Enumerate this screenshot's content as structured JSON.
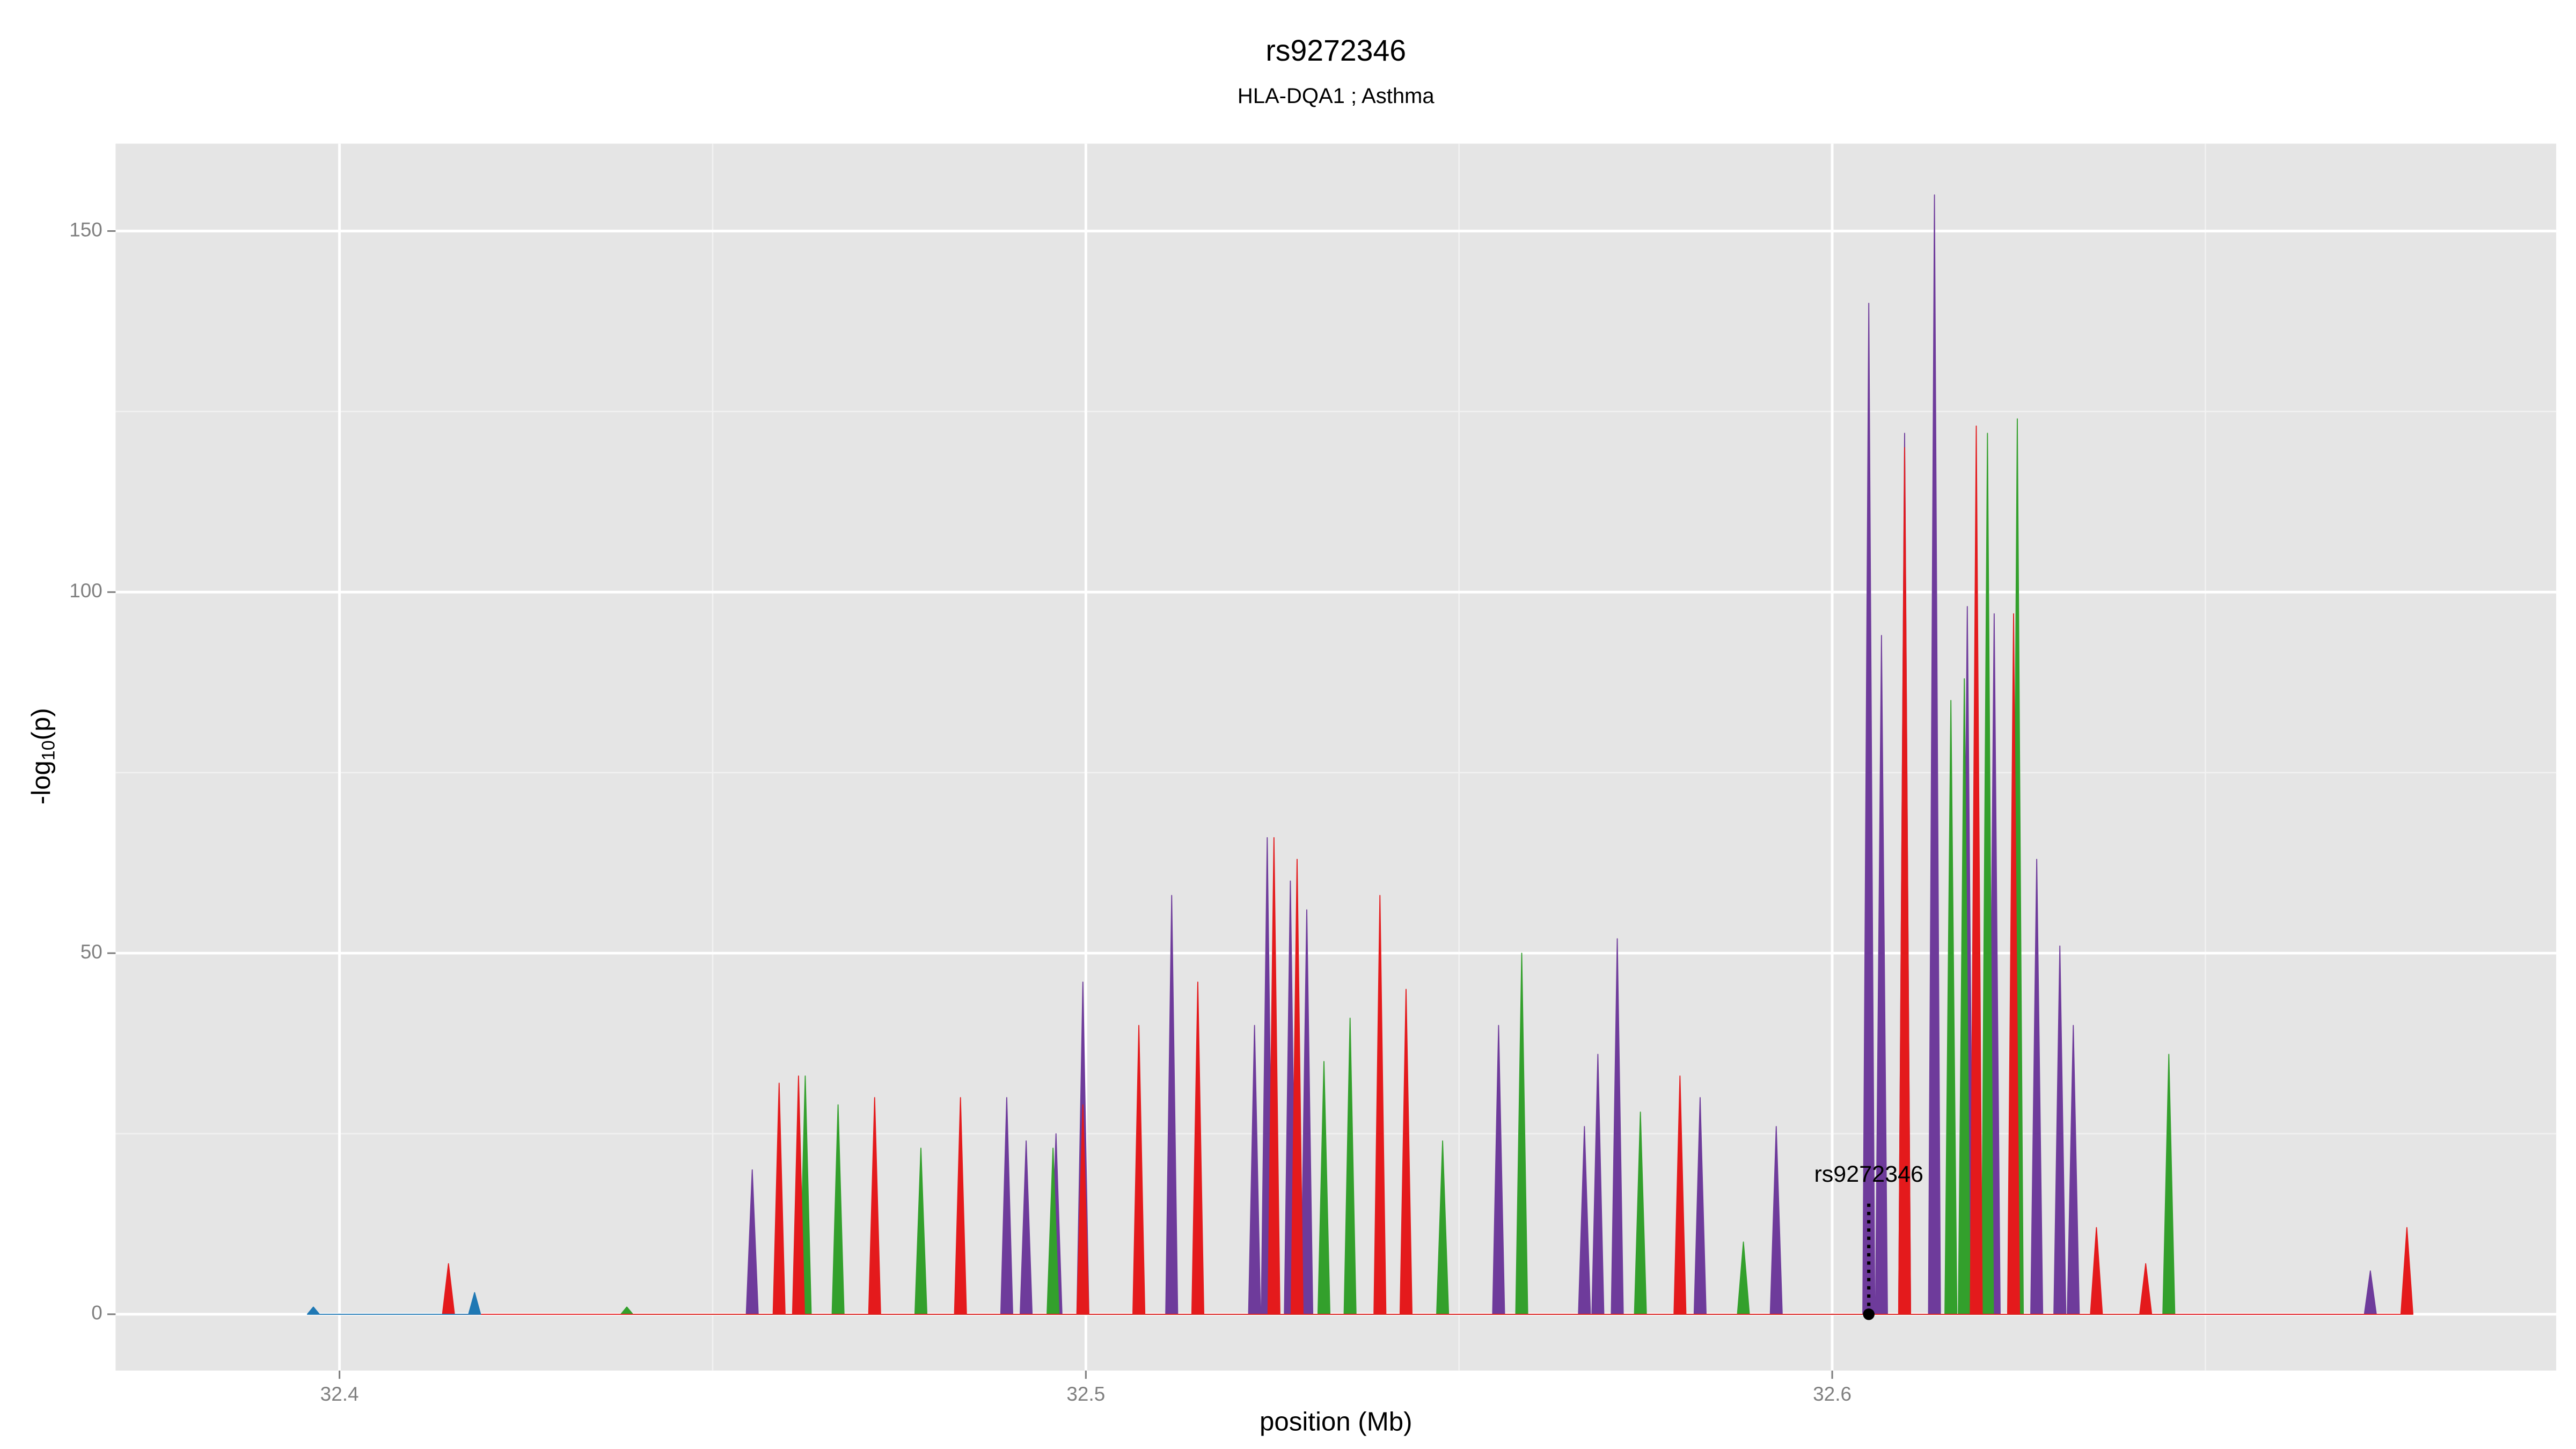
{
  "chart_data": {
    "type": "area",
    "title": "rs9272346",
    "subtitle": "HLA-DQA1 ; Asthma",
    "xlabel": "position (Mb)",
    "ylabel": {
      "prefix": "-log",
      "sub": "10",
      "suffix": "(p)"
    },
    "xlim": [
      32.37,
      32.697
    ],
    "ylim": [
      -7.8,
      162.1
    ],
    "xticks": [
      32.4,
      32.5,
      32.6
    ],
    "yticks": [
      0,
      50,
      100,
      150
    ],
    "grid": true,
    "series": [
      {
        "color": "#6e3b9b",
        "x": [
          32.4545,
          32.4553,
          32.4561,
          32.4886,
          32.4894,
          32.4902,
          32.4912,
          32.492,
          32.4928,
          32.4952,
          32.496,
          32.4968,
          32.4988,
          32.4996,
          32.5004,
          32.5107,
          32.5115,
          32.5123,
          32.5218,
          32.5226,
          32.5234,
          32.5235,
          32.5243,
          32.5251,
          32.5266,
          32.5274,
          32.5282,
          32.5288,
          32.5296,
          32.5304,
          32.5545,
          32.5553,
          32.5561,
          32.566,
          32.5668,
          32.5676,
          32.5678,
          32.5686,
          32.5694,
          32.5704,
          32.5712,
          32.572,
          32.5815,
          32.5823,
          32.5831,
          32.5917,
          32.5925,
          32.5933,
          32.6041,
          32.6049,
          32.6057,
          32.6058,
          32.6066,
          32.6074,
          32.6089,
          32.6097,
          32.6105,
          32.6129,
          32.6137,
          32.6145,
          32.6173,
          32.6181,
          32.6189,
          32.6209,
          32.6217,
          32.6225,
          32.6266,
          32.6274,
          32.6282,
          32.6297,
          32.6305,
          32.6313,
          32.6315,
          32.6323,
          32.6331,
          32.6713,
          32.6721,
          32.6729
        ],
        "values": [
          0,
          20,
          0,
          0,
          30,
          0,
          0,
          24,
          0,
          0,
          25,
          0,
          0,
          46,
          0,
          0,
          58,
          0,
          0,
          40,
          0,
          0,
          66,
          0,
          0,
          60,
          0,
          0,
          56,
          0,
          0,
          40,
          0,
          0,
          26,
          0,
          0,
          36,
          0,
          0,
          52,
          0,
          0,
          30,
          0,
          0,
          26,
          0,
          0,
          140,
          0,
          0,
          94,
          0,
          0,
          122,
          0,
          0,
          155,
          0,
          0,
          98,
          0,
          0,
          97,
          0,
          0,
          63,
          0,
          0,
          51,
          0,
          0,
          40,
          0,
          0,
          6,
          0
        ]
      },
      {
        "color": "#33a02c",
        "x": [
          32.4377,
          32.4385,
          32.4393,
          32.4616,
          32.4624,
          32.4632,
          32.466,
          32.4668,
          32.4676,
          32.4771,
          32.4779,
          32.4787,
          32.4948,
          32.4956,
          32.4964,
          32.5311,
          32.5319,
          32.5327,
          32.5346,
          32.5354,
          32.5362,
          32.547,
          32.5478,
          32.5486,
          32.5576,
          32.5584,
          32.5592,
          32.5735,
          32.5743,
          32.5751,
          32.5873,
          32.5881,
          32.5889,
          32.6151,
          32.6159,
          32.6167,
          32.6169,
          32.6177,
          32.6185,
          32.62,
          32.6208,
          32.6216,
          32.624,
          32.6248,
          32.6256,
          32.6443,
          32.6451,
          32.6459
        ],
        "values": [
          0,
          1,
          0,
          0,
          33,
          0,
          0,
          29,
          0,
          0,
          23,
          0,
          0,
          23,
          0,
          0,
          35,
          0,
          0,
          41,
          0,
          0,
          24,
          0,
          0,
          50,
          0,
          0,
          28,
          0,
          0,
          10,
          0,
          0,
          85,
          0,
          0,
          88,
          0,
          0,
          122,
          0,
          0,
          124,
          0,
          0,
          36,
          0
        ]
      },
      {
        "color": "#e41a1c",
        "x": [
          32.4138,
          32.4146,
          32.4154,
          32.4581,
          32.4589,
          32.4597,
          32.4607,
          32.4615,
          32.4623,
          32.4709,
          32.4717,
          32.4725,
          32.4824,
          32.4832,
          32.484,
          32.4988,
          32.4996,
          32.5004,
          32.5063,
          32.5071,
          32.5079,
          32.5142,
          32.515,
          32.5158,
          32.5244,
          32.5252,
          32.526,
          32.5275,
          32.5283,
          32.5291,
          32.5386,
          32.5394,
          32.5402,
          32.5421,
          32.5429,
          32.5437,
          32.5788,
          32.5796,
          32.5804,
          32.6089,
          32.6097,
          32.6105,
          32.6185,
          32.6193,
          32.6201,
          32.6235,
          32.6243,
          32.6251,
          32.6346,
          32.6354,
          32.6362,
          32.6412,
          32.642,
          32.6428,
          32.6762,
          32.677,
          32.6778
        ],
        "values": [
          0,
          7,
          0,
          0,
          32,
          0,
          0,
          33,
          0,
          0,
          30,
          0,
          0,
          30,
          0,
          0,
          29,
          0,
          0,
          40,
          0,
          0,
          46,
          0,
          0,
          66,
          0,
          0,
          63,
          0,
          0,
          58,
          0,
          0,
          45,
          0,
          0,
          33,
          0,
          0,
          120,
          0,
          0,
          123,
          0,
          0,
          97,
          0,
          0,
          12,
          0,
          0,
          7,
          0,
          0,
          12,
          0
        ]
      },
      {
        "color": "#1f78b4",
        "x": [
          32.3957,
          32.3965,
          32.3973,
          32.4173,
          32.4181,
          32.4189
        ],
        "values": [
          0,
          1,
          0,
          0,
          3,
          0
        ]
      }
    ],
    "annotations": [
      {
        "text": "rs9272346",
        "x": 32.6049,
        "y": 0
      }
    ]
  }
}
